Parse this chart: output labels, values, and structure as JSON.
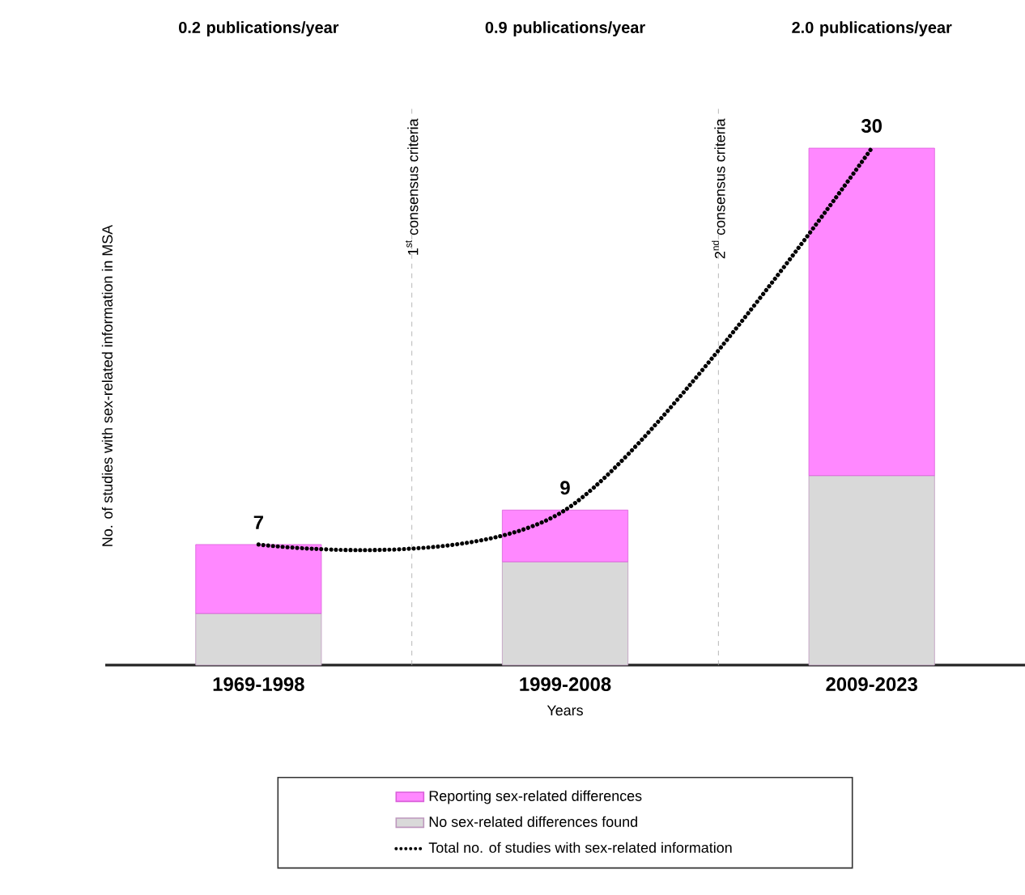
{
  "chart_data": {
    "type": "bar",
    "stacked": true,
    "categories": [
      "1969-1998",
      "1999-2008",
      "2009-2023"
    ],
    "xlabel": "Years",
    "ylabel": "No. of studies with sex-related information in MSA",
    "series": [
      {
        "name": "No sex-related differences found",
        "color": "#d9d9d9",
        "values": [
          3,
          6,
          11
        ]
      },
      {
        "name": "Reporting sex-related differences",
        "color": "#ff88ff",
        "values": [
          4,
          3,
          19
        ]
      },
      {
        "name": "Total no. of studies with sex-related information",
        "type": "line",
        "color": "#000000",
        "line_style": "dotted",
        "values": [
          7,
          9,
          30
        ],
        "value_labels": [
          "7",
          "9",
          "30"
        ]
      }
    ],
    "annotations": [
      "0.2 publications/year",
      "0.9 publications/year",
      "2.0 publications/year",
      "1$^{st}$ consensus criteria",
      "2$^{nd}$ consensus criteria"
    ],
    "legend": "bottom"
  }
}
